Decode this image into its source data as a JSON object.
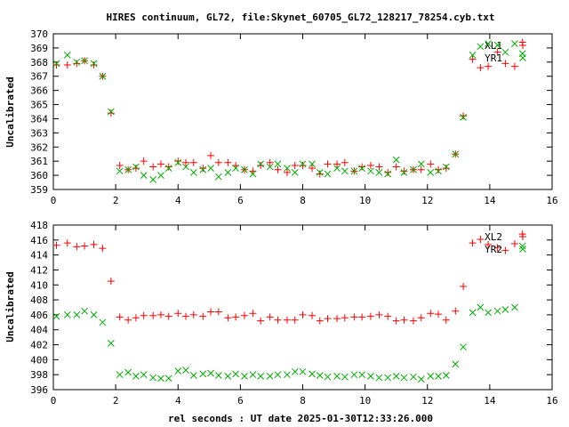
{
  "chart_data": [
    {
      "type": "scatter",
      "title": "HIRES continuum, GL72, file:Skynet_60705_GL72_128217_78254.cyb.txt",
      "ylabel": "Uncalibrated",
      "xlabel": "",
      "xlim": [
        0,
        16
      ],
      "ylim": [
        359,
        370
      ],
      "xticks": [
        "0",
        "2",
        "4",
        "6",
        "8",
        "10",
        "12",
        "14",
        "16"
      ],
      "yticks": [
        "359",
        "360",
        "361",
        "362",
        "363",
        "364",
        "365",
        "366",
        "367",
        "368",
        "369",
        "370"
      ],
      "legend": "top-right",
      "series": [
        {
          "name": "XL1",
          "marker": "plus",
          "color": "#ff0000",
          "x": [
            0.1,
            0.45,
            0.75,
            1.0,
            1.3,
            1.58,
            1.85,
            2.13,
            2.4,
            2.65,
            2.9,
            3.2,
            3.45,
            3.7,
            4.0,
            4.25,
            4.5,
            4.8,
            5.05,
            5.3,
            5.6,
            5.85,
            6.13,
            6.4,
            6.65,
            6.95,
            7.2,
            7.5,
            7.75,
            8.0,
            8.3,
            8.55,
            8.8,
            9.1,
            9.35,
            9.65,
            9.9,
            10.18,
            10.45,
            10.73,
            11.0,
            11.25,
            11.55,
            11.8,
            12.1,
            12.35,
            12.6,
            12.9,
            13.15,
            13.45,
            13.7,
            13.95,
            14.25,
            14.5,
            14.8,
            15.05
          ],
          "y": [
            367.8,
            367.8,
            367.9,
            368.1,
            367.8,
            367.0,
            364.4,
            360.7,
            360.4,
            360.5,
            361.0,
            360.6,
            360.8,
            360.6,
            361.0,
            360.9,
            360.9,
            360.5,
            361.4,
            360.9,
            360.9,
            360.7,
            360.4,
            360.3,
            360.7,
            360.9,
            360.4,
            360.2,
            360.7,
            360.7,
            360.5,
            360.1,
            360.8,
            360.8,
            360.9,
            360.3,
            360.6,
            360.7,
            360.6,
            360.2,
            360.6,
            360.3,
            360.4,
            360.4,
            360.8,
            360.4,
            360.5,
            361.5,
            364.2,
            368.2,
            367.6,
            367.7,
            368.7,
            367.9,
            367.7,
            369.4
          ]
        },
        {
          "name": "YR1",
          "marker": "cross",
          "color": "#00aa00",
          "x": [
            0.1,
            0.45,
            0.75,
            1.0,
            1.3,
            1.58,
            1.85,
            2.13,
            2.4,
            2.65,
            2.9,
            3.2,
            3.45,
            3.7,
            4.0,
            4.25,
            4.5,
            4.8,
            5.05,
            5.3,
            5.6,
            5.85,
            6.13,
            6.4,
            6.65,
            6.95,
            7.2,
            7.5,
            7.75,
            8.0,
            8.3,
            8.55,
            8.8,
            9.1,
            9.35,
            9.65,
            9.9,
            10.18,
            10.45,
            10.73,
            11.0,
            11.25,
            11.55,
            11.8,
            12.1,
            12.35,
            12.6,
            12.9,
            13.15,
            13.45,
            13.7,
            13.95,
            14.25,
            14.5,
            14.8,
            15.05
          ],
          "y": [
            367.9,
            368.5,
            368.0,
            368.1,
            367.9,
            367.0,
            364.5,
            360.3,
            360.4,
            360.6,
            360.0,
            359.7,
            360.0,
            360.5,
            360.9,
            360.6,
            360.2,
            360.4,
            360.5,
            359.9,
            360.2,
            360.5,
            360.4,
            360.1,
            360.8,
            360.6,
            360.8,
            360.5,
            360.2,
            360.8,
            360.8,
            360.2,
            360.1,
            360.5,
            360.3,
            360.3,
            360.5,
            360.3,
            360.2,
            360.1,
            361.1,
            360.2,
            360.4,
            360.8,
            360.2,
            360.3,
            360.6,
            361.5,
            364.1,
            368.5,
            369.1,
            369.3,
            369.2,
            368.7,
            369.3,
            368.6
          ]
        }
      ]
    },
    {
      "type": "scatter",
      "title": "",
      "ylabel": "Uncalibrated",
      "xlabel": "rel seconds : UT date 2025-01-30T12:33:26.000",
      "xlim": [
        0,
        16
      ],
      "ylim": [
        396,
        418
      ],
      "xticks": [
        "0",
        "2",
        "4",
        "6",
        "8",
        "10",
        "12",
        "14",
        "16"
      ],
      "yticks": [
        "396",
        "398",
        "400",
        "402",
        "404",
        "406",
        "408",
        "410",
        "412",
        "414",
        "416",
        "418"
      ],
      "legend": "top-right",
      "series": [
        {
          "name": "XL2",
          "marker": "plus",
          "color": "#ff0000",
          "x": [
            0.1,
            0.45,
            0.75,
            1.0,
            1.3,
            1.58,
            1.85,
            2.13,
            2.4,
            2.65,
            2.9,
            3.2,
            3.45,
            3.7,
            4.0,
            4.25,
            4.5,
            4.8,
            5.05,
            5.3,
            5.6,
            5.85,
            6.13,
            6.4,
            6.65,
            6.95,
            7.2,
            7.5,
            7.75,
            8.0,
            8.3,
            8.55,
            8.8,
            9.1,
            9.35,
            9.65,
            9.9,
            10.18,
            10.45,
            10.73,
            11.0,
            11.25,
            11.55,
            11.8,
            12.1,
            12.35,
            12.6,
            12.9,
            13.15,
            13.45,
            13.7,
            13.95,
            14.25,
            14.5,
            14.8,
            15.05
          ],
          "y": [
            415.3,
            415.6,
            415.1,
            415.2,
            415.4,
            414.9,
            410.5,
            405.7,
            405.3,
            405.6,
            405.9,
            405.9,
            406.0,
            405.8,
            406.2,
            405.8,
            406.0,
            405.8,
            406.4,
            406.4,
            405.6,
            405.7,
            405.9,
            406.2,
            405.2,
            405.7,
            405.3,
            405.3,
            405.3,
            406.0,
            405.9,
            405.2,
            405.5,
            405.5,
            405.6,
            405.7,
            405.7,
            405.8,
            406.0,
            405.8,
            405.2,
            405.3,
            405.2,
            405.6,
            406.2,
            406.1,
            405.3,
            406.5,
            409.8,
            415.6,
            416.1,
            415.4,
            415.0,
            414.6,
            415.5,
            416.8
          ]
        },
        {
          "name": "YR2",
          "marker": "cross",
          "color": "#00aa00",
          "x": [
            0.1,
            0.45,
            0.75,
            1.0,
            1.3,
            1.58,
            1.85,
            2.13,
            2.4,
            2.65,
            2.9,
            3.2,
            3.45,
            3.7,
            4.0,
            4.25,
            4.5,
            4.8,
            5.05,
            5.3,
            5.6,
            5.85,
            6.13,
            6.4,
            6.65,
            6.95,
            7.2,
            7.5,
            7.75,
            8.0,
            8.3,
            8.55,
            8.8,
            9.1,
            9.35,
            9.65,
            9.9,
            10.18,
            10.45,
            10.73,
            11.0,
            11.25,
            11.55,
            11.8,
            12.1,
            12.35,
            12.6,
            12.9,
            13.15,
            13.45,
            13.7,
            13.95,
            14.25,
            14.5,
            14.8,
            15.05
          ],
          "y": [
            405.8,
            406.0,
            406.0,
            406.5,
            406.0,
            405.0,
            402.2,
            398.0,
            398.3,
            397.8,
            398.0,
            397.6,
            397.5,
            397.5,
            398.5,
            398.6,
            397.9,
            398.1,
            398.2,
            397.9,
            397.8,
            398.1,
            397.8,
            398.0,
            397.8,
            397.8,
            398.0,
            398.0,
            398.4,
            398.4,
            398.1,
            397.9,
            397.7,
            397.8,
            397.7,
            398.0,
            398.0,
            397.8,
            397.6,
            397.6,
            397.8,
            397.6,
            397.7,
            397.4,
            397.8,
            397.8,
            397.9,
            399.4,
            401.7,
            406.3,
            407.0,
            406.3,
            406.5,
            406.7,
            407.0,
            415.2
          ]
        }
      ]
    }
  ]
}
